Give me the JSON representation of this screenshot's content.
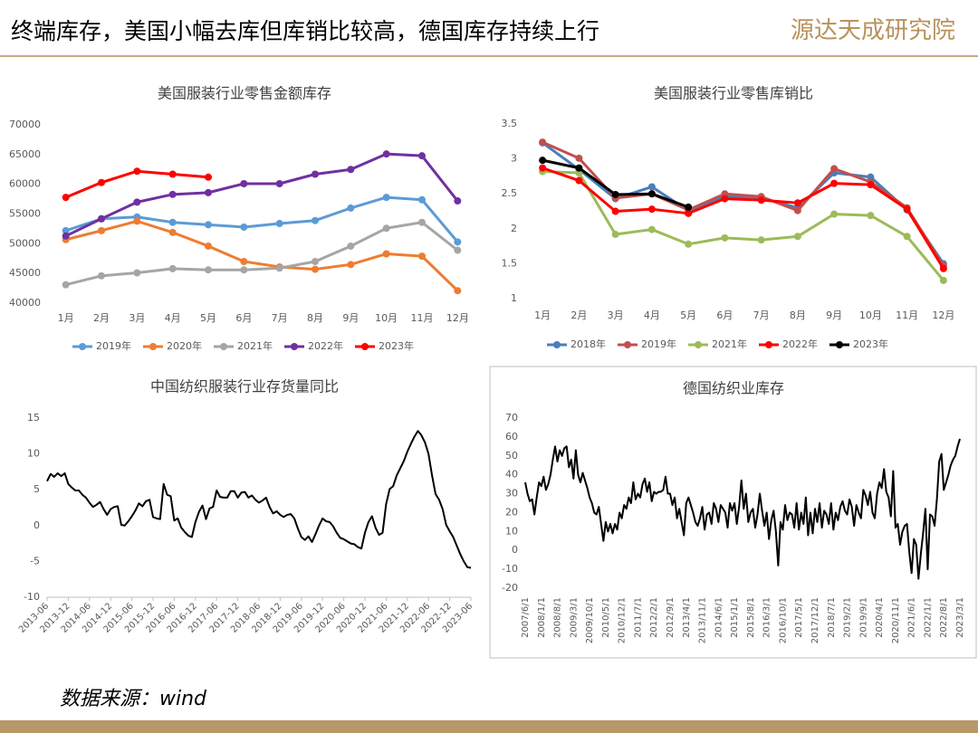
{
  "header": {
    "title": "终端库存，美国小幅去库但库销比较高，德国库存持续上行",
    "logo": "源达天成研究院"
  },
  "source": "数据来源：wind",
  "chart_data": [
    {
      "type": "line",
      "title": "美国服装行业零售金额库存",
      "markers": true,
      "legend": "bottom",
      "categories": [
        "1月",
        "2月",
        "3月",
        "4月",
        "5月",
        "6月",
        "7月",
        "8月",
        "9月",
        "10月",
        "11月",
        "12月"
      ],
      "ylim": [
        40000,
        70000
      ],
      "yticks": [
        40000,
        45000,
        50000,
        55000,
        60000,
        65000,
        70000
      ],
      "series": [
        {
          "name": "2019年",
          "color": "#5b9bd5",
          "values": [
            52200,
            54200,
            54500,
            53600,
            53200,
            52800,
            53400,
            53900,
            56000,
            57800,
            57400,
            50300
          ]
        },
        {
          "name": "2020年",
          "color": "#ed7d31",
          "values": [
            50700,
            52200,
            53800,
            51900,
            49600,
            47000,
            46100,
            45700,
            46500,
            48300,
            47900,
            42100
          ]
        },
        {
          "name": "2021年",
          "color": "#a5a5a5",
          "values": [
            43100,
            44600,
            45100,
            45800,
            45600,
            45600,
            45900,
            47000,
            49600,
            52600,
            53600,
            48900
          ]
        },
        {
          "name": "2022年",
          "color": "#7030a0",
          "values": [
            51300,
            54200,
            57000,
            58300,
            58600,
            60100,
            60100,
            61700,
            62500,
            65100,
            64800,
            57200
          ]
        },
        {
          "name": "2023年",
          "color": "#ff0000",
          "values": [
            57800,
            60300,
            62200,
            61700,
            61200,
            null,
            null,
            null,
            null,
            null,
            null,
            null
          ]
        }
      ]
    },
    {
      "type": "line",
      "title": "美国服装行业零售库销比",
      "markers": true,
      "legend": "bottom",
      "categories": [
        "1月",
        "2月",
        "3月",
        "4月",
        "5月",
        "6月",
        "7月",
        "8月",
        "9月",
        "10月",
        "11月",
        "12月"
      ],
      "ylim": [
        1,
        3.5
      ],
      "yticks": [
        1,
        1.5,
        2,
        2.5,
        3,
        3.5
      ],
      "series": [
        {
          "name": "2018年",
          "color": "#4a7ebb",
          "values": [
            3.23,
            2.85,
            2.43,
            2.6,
            2.26,
            2.46,
            2.44,
            2.3,
            2.8,
            2.74,
            2.27,
            1.5
          ]
        },
        {
          "name": "2019年",
          "color": "#c0504d",
          "values": [
            3.24,
            3.01,
            2.44,
            2.5,
            2.27,
            2.5,
            2.46,
            2.26,
            2.86,
            2.67,
            2.3,
            1.47
          ]
        },
        {
          "name": "2021年",
          "color": "#9bbb59",
          "values": [
            2.82,
            2.8,
            1.92,
            1.99,
            1.78,
            1.87,
            1.84,
            1.89,
            2.21,
            2.19,
            1.89,
            1.26
          ]
        },
        {
          "name": "2022年",
          "color": "#ff0000",
          "values": [
            2.87,
            2.69,
            2.25,
            2.28,
            2.22,
            2.43,
            2.41,
            2.37,
            2.65,
            2.63,
            2.28,
            1.43
          ]
        },
        {
          "name": "2023年",
          "color": "#000000",
          "values": [
            2.98,
            2.87,
            2.49,
            2.5,
            2.31,
            null,
            null,
            null,
            null,
            null,
            null,
            null
          ]
        }
      ]
    },
    {
      "type": "line",
      "title": "中国纺织服装行业存货量同比",
      "color": "#000000",
      "ylim": [
        -10,
        15
      ],
      "yticks": [
        -10,
        -5,
        0,
        5,
        10,
        15
      ],
      "categories": [
        "2013-06",
        null,
        null,
        null,
        null,
        null,
        "2013-12",
        null,
        null,
        null,
        null,
        null,
        "2014-06",
        null,
        null,
        null,
        null,
        null,
        "2014-12",
        null,
        null,
        null,
        null,
        null,
        "2015-06",
        null,
        null,
        null,
        null,
        null,
        "2015-12",
        null,
        null,
        null,
        null,
        null,
        "2016-06",
        null,
        null,
        null,
        null,
        null,
        "2016-12",
        null,
        null,
        null,
        null,
        null,
        "2017-06",
        null,
        null,
        null,
        null,
        null,
        "2017-12",
        null,
        null,
        null,
        null,
        null,
        "2018-06",
        null,
        null,
        null,
        null,
        null,
        "2018-12",
        null,
        null,
        null,
        null,
        null,
        "2019-06",
        null,
        null,
        null,
        null,
        null,
        "2019-12",
        null,
        null,
        null,
        null,
        null,
        "2020-06",
        null,
        null,
        null,
        null,
        null,
        "2020-12",
        null,
        null,
        null,
        null,
        null,
        "2021-06",
        null,
        null,
        null,
        null,
        null,
        "2021-12",
        null,
        null,
        null,
        null,
        null,
        "2022-06",
        null,
        null,
        null,
        null,
        null,
        "2022-12",
        null,
        null,
        null,
        null,
        null,
        "2023-06"
      ],
      "values": [
        6.2,
        7.2,
        6.8,
        7.3,
        6.9,
        7.3,
        5.8,
        5.3,
        4.9,
        4.9,
        4.3,
        3.9,
        3.2,
        2.6,
        2.9,
        3.3,
        2.3,
        1.5,
        2.3,
        2.6,
        2.7,
        0.1,
        0,
        0.6,
        1.3,
        2.1,
        3.1,
        2.7,
        3.4,
        3.6,
        1.2,
        1.0,
        0.9,
        5.8,
        4.3,
        4.1,
        0.7,
        1.0,
        -0.3,
        -0.9,
        -1.4,
        -1.6,
        0.5,
        1.9,
        2.8,
        0.9,
        2.4,
        2.6,
        4.9,
        4.0,
        3.9,
        3.9,
        4.8,
        4.8,
        3.9,
        4.6,
        4.7,
        3.9,
        4.2,
        3.6,
        3.2,
        3.5,
        3.9,
        2.6,
        1.7,
        2.0,
        1.5,
        1.2,
        1.5,
        1.6,
        1.0,
        -0.4,
        -1.6,
        -2.0,
        -1.5,
        -2.3,
        -1.2,
        0.0,
        1.0,
        0.6,
        0.5,
        -0.1,
        -1.0,
        -1.7,
        -1.9,
        -2.2,
        -2.5,
        -2.6,
        -3.0,
        -3.2,
        -1.0,
        0.5,
        1.3,
        -0.3,
        -1.3,
        -1.0,
        3.0,
        5.1,
        5.5,
        7.0,
        8.0,
        9.0,
        10.3,
        11.4,
        12.4,
        13.2,
        12.6,
        11.6,
        10.0,
        7.0,
        4.4,
        3.6,
        2.3,
        0.1,
        -0.8,
        -1.6,
        -2.8,
        -4.0,
        -5.0,
        -5.8,
        -5.9
      ]
    },
    {
      "type": "line",
      "title": "德国纺织业库存",
      "color": "#000000",
      "ylim": [
        -20,
        70
      ],
      "yticks": [
        -20,
        -10,
        0,
        10,
        20,
        30,
        40,
        50,
        60,
        70
      ],
      "categories": [
        "2007/6/1",
        null,
        null,
        null,
        null,
        null,
        null,
        "2008/1/1",
        null,
        null,
        null,
        null,
        null,
        null,
        "2008/8/1",
        null,
        null,
        null,
        null,
        null,
        null,
        "2009/3/1",
        null,
        null,
        null,
        null,
        null,
        null,
        "2009/10/1",
        null,
        null,
        null,
        null,
        null,
        null,
        "2010/5/1",
        null,
        null,
        null,
        null,
        null,
        null,
        "2010/12/1",
        null,
        null,
        null,
        null,
        null,
        null,
        "2011/7/1",
        null,
        null,
        null,
        null,
        null,
        null,
        "2012/2/1",
        null,
        null,
        null,
        null,
        null,
        null,
        "2012/9/1",
        null,
        null,
        null,
        null,
        null,
        null,
        "2013/4/1",
        null,
        null,
        null,
        null,
        null,
        null,
        "2013/11/1",
        null,
        null,
        null,
        null,
        null,
        null,
        "2014/6/1",
        null,
        null,
        null,
        null,
        null,
        null,
        "2015/1/1",
        null,
        null,
        null,
        null,
        null,
        null,
        "2015/8/1",
        null,
        null,
        null,
        null,
        null,
        null,
        "2016/3/1",
        null,
        null,
        null,
        null,
        null,
        null,
        "2016/10/1",
        null,
        null,
        null,
        null,
        null,
        null,
        "2017/5/1",
        null,
        null,
        null,
        null,
        null,
        null,
        "2017/12/1",
        null,
        null,
        null,
        null,
        null,
        null,
        "2018/7/1",
        null,
        null,
        null,
        null,
        null,
        null,
        "2019/2/1",
        null,
        null,
        null,
        null,
        null,
        null,
        "2019/9/1",
        null,
        null,
        null,
        null,
        null,
        null,
        "2020/4/1",
        null,
        null,
        null,
        null,
        null,
        null,
        "2020/11/1",
        null,
        null,
        null,
        null,
        null,
        null,
        "2021/6/1",
        null,
        null,
        null,
        null,
        null,
        null,
        "2022/1/1",
        null,
        null,
        null,
        null,
        null,
        null,
        "2022/8/1",
        null,
        null,
        null,
        null,
        null,
        null,
        "2023/3/1"
      ],
      "values": [
        36,
        30,
        26,
        27,
        19,
        28,
        36,
        34,
        39,
        32,
        35,
        40,
        48,
        55,
        47,
        53,
        50,
        54,
        55,
        44,
        48,
        38,
        53,
        40,
        36,
        41,
        37,
        33,
        28,
        25,
        20,
        19,
        23,
        14,
        5,
        15,
        10,
        14,
        9,
        14,
        11,
        20,
        17,
        24,
        22,
        28,
        25,
        36,
        27,
        30,
        28,
        35,
        38,
        31,
        36,
        26,
        31,
        30,
        31,
        31,
        32,
        39,
        30,
        30,
        24,
        28,
        17,
        22,
        15,
        8,
        25,
        28,
        24,
        20,
        15,
        13,
        17,
        23,
        11,
        19,
        20,
        14,
        25,
        22,
        15,
        24,
        22,
        20,
        12,
        25,
        21,
        25,
        14,
        23,
        37,
        22,
        30,
        15,
        20,
        22,
        12,
        19,
        30,
        21,
        13,
        20,
        6,
        16,
        21,
        10,
        -8,
        15,
        11,
        24,
        16,
        20,
        19,
        12,
        25,
        11,
        20,
        14,
        28,
        8,
        20,
        9,
        22,
        15,
        25,
        12,
        21,
        19,
        14,
        25,
        11,
        20,
        16,
        23,
        26,
        21,
        19,
        27,
        23,
        13,
        24,
        20,
        17,
        32,
        29,
        24,
        31,
        20,
        17,
        30,
        36,
        33,
        43,
        31,
        28,
        18,
        42,
        12,
        14,
        3,
        10,
        13,
        14,
        -1,
        -12,
        6,
        3,
        -15,
        -2,
        9,
        22,
        -10,
        19,
        18,
        13,
        27,
        47,
        51,
        32,
        36,
        40,
        45,
        48,
        50,
        55,
        59
      ]
    }
  ]
}
